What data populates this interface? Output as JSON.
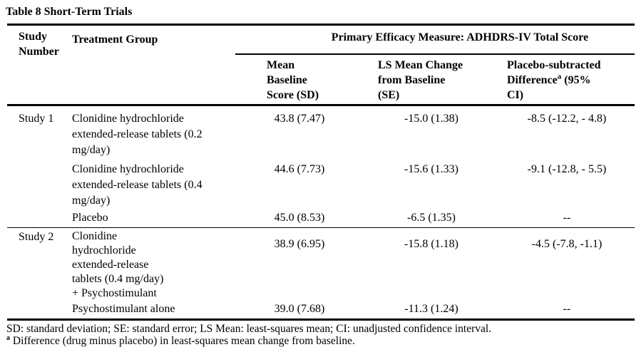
{
  "title": "Table 8 Short-Term Trials",
  "table": {
    "header": {
      "study_number": "Study Number",
      "treatment_group": "Treatment Group",
      "primary_measure": "Primary Efficacy Measure: ADHDRS-IV Total Score",
      "subcolumns": {
        "mean_baseline_lines": [
          "Mean",
          "Baseline",
          "Score (SD)"
        ],
        "ls_mean_change_lines": [
          "LS Mean Change",
          "from Baseline",
          "(SE)"
        ],
        "placebo_subtracted": {
          "line1": "Placebo-subtracted",
          "line2_before_sup": "Difference",
          "sup": "a",
          "line2_after_sup": " (95%",
          "line3": "CI)"
        }
      }
    },
    "rows": [
      {
        "study": "Study 1",
        "treatment_lines": [
          "Clonidine hydrochloride",
          "extended-release tablets (0.2",
          "mg/day)"
        ],
        "mean_baseline": "43.8 (7.47)",
        "ls_mean_change": "-15.0 (1.38)",
        "placebo_subtracted_difference": "-8.5 (-12.2, - 4.8)"
      },
      {
        "treatment_lines": [
          "Clonidine hydrochloride",
          "extended-release tablets (0.4",
          "mg/day)"
        ],
        "mean_baseline": "44.6 (7.73)",
        "ls_mean_change": "-15.6 (1.33)",
        "placebo_subtracted_difference": "-9.1 (-12.8, - 5.5)"
      },
      {
        "treatment_lines": [
          "Placebo"
        ],
        "mean_baseline": "45.0 (8.53)",
        "ls_mean_change": "-6.5 (1.35)",
        "placebo_subtracted_difference": "--"
      },
      {
        "study": "Study 2",
        "treatment_lines": [
          "Clonidine",
          "hydrochloride",
          "extended-release",
          "tablets (0.4 mg/day)",
          "+ Psychostimulant"
        ],
        "mean_baseline": "38.9 (6.95)",
        "ls_mean_change": "-15.8 (1.18)",
        "placebo_subtracted_difference": "-4.5 (-7.8, -1.1)"
      },
      {
        "treatment_lines": [
          "Psychostimulant alone"
        ],
        "mean_baseline": "39.0 (7.68)",
        "ls_mean_change": "-11.3 (1.24)",
        "placebo_subtracted_difference": "--"
      }
    ]
  },
  "footnotes": {
    "abbreviations": "SD: standard deviation; SE: standard error; LS Mean: least-squares mean; CI: unadjusted confidence interval.",
    "sup": "a",
    "difference_note": " Difference (drug minus placebo) in least-squares mean change from baseline."
  }
}
